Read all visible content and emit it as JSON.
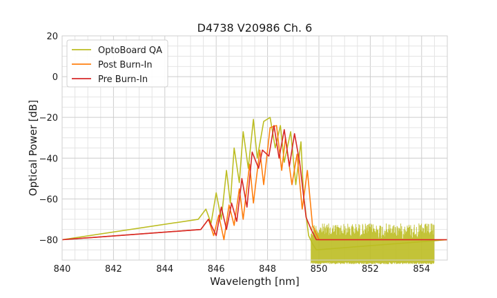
{
  "chart_data": {
    "type": "line",
    "title": "D4738 V20986 Ch. 6",
    "xlabel": "Wavelength [nm]",
    "ylabel": "Optical Power [dB]",
    "xlim": [
      840,
      855
    ],
    "ylim": [
      -90,
      20
    ],
    "xticks": [
      840,
      842,
      844,
      846,
      848,
      850,
      852,
      854
    ],
    "yticks": [
      20,
      0,
      -20,
      -40,
      -60,
      -80
    ],
    "ytick_labels": [
      "20",
      "0",
      "−20",
      "−40",
      "−60",
      "−80"
    ],
    "grid": true,
    "legend_position": "top-left",
    "noise_floor": [
      -90,
      -72
    ],
    "series": [
      {
        "name": "OptoBoard QA",
        "color": "#bcbd22",
        "x": [
          840.0,
          845.3,
          845.6,
          845.8,
          846.0,
          846.2,
          846.4,
          846.55,
          846.7,
          846.9,
          847.05,
          847.25,
          847.45,
          847.6,
          847.85,
          848.1,
          848.3,
          848.5,
          848.65,
          848.9,
          849.1,
          849.3,
          849.4,
          849.6,
          849.75,
          849.9,
          855.0
        ],
        "y": [
          -80,
          -70,
          -65,
          -72,
          -57,
          -70,
          -46,
          -62,
          -35,
          -52,
          -27,
          -45,
          -21,
          -40,
          -22,
          -20,
          -35,
          -24,
          -42,
          -27,
          -53,
          -32,
          -58,
          -78,
          -82,
          -85,
          -80
        ]
      },
      {
        "name": "Post Burn-In",
        "color": "#ff7f0e",
        "x": [
          840.0,
          845.4,
          845.7,
          845.9,
          846.1,
          846.3,
          846.5,
          846.7,
          846.9,
          847.05,
          847.3,
          847.45,
          847.7,
          847.85,
          848.1,
          848.35,
          848.55,
          848.7,
          848.95,
          849.15,
          849.35,
          849.55,
          849.75,
          850.0,
          855.0
        ],
        "y": [
          -80,
          -75,
          -70,
          -78,
          -68,
          -80,
          -63,
          -73,
          -55,
          -70,
          -43,
          -62,
          -36,
          -53,
          -25,
          -24,
          -46,
          -30,
          -53,
          -38,
          -65,
          -46,
          -73,
          -80,
          -80
        ]
      },
      {
        "name": "Pre Burn-In",
        "color": "#d62728",
        "x": [
          840.0,
          845.4,
          845.7,
          846.0,
          846.2,
          846.4,
          846.6,
          846.8,
          847.0,
          847.2,
          847.4,
          847.65,
          847.8,
          848.05,
          848.25,
          848.45,
          848.65,
          848.85,
          849.05,
          849.25,
          849.5,
          849.7,
          849.9,
          855.0
        ],
        "y": [
          -80,
          -75,
          -70,
          -78,
          -64,
          -75,
          -62,
          -71,
          -50,
          -64,
          -37,
          -45,
          -36,
          -39,
          -24,
          -40,
          -26,
          -44,
          -28,
          -42,
          -69,
          -75,
          -80,
          -80
        ]
      }
    ]
  }
}
